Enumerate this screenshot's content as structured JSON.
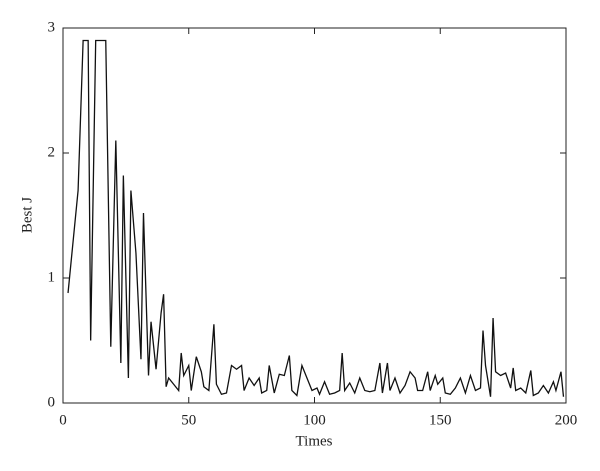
{
  "chart_data": {
    "type": "line",
    "x_label": "Times",
    "y_label": "Best J",
    "x": [
      2,
      6,
      8,
      10,
      11,
      13,
      17,
      19,
      21,
      23,
      24,
      26,
      27,
      29,
      31,
      32,
      34,
      35,
      37,
      39,
      40,
      41,
      42,
      44,
      46,
      47,
      48,
      50,
      51,
      53,
      55,
      56,
      58,
      60,
      61,
      63,
      65,
      67,
      69,
      71,
      72,
      74,
      76,
      78,
      79,
      81,
      82,
      84,
      86,
      88,
      90,
      91,
      93,
      95,
      97,
      99,
      101,
      102,
      104,
      106,
      108,
      110,
      111,
      112,
      114,
      116,
      118,
      120,
      122,
      124,
      126,
      127,
      129,
      130,
      132,
      134,
      136,
      138,
      140,
      141,
      143,
      145,
      146,
      148,
      149,
      151,
      152,
      154,
      156,
      158,
      160,
      162,
      164,
      166,
      167,
      168,
      170,
      171,
      172,
      174,
      176,
      178,
      179,
      180,
      182,
      184,
      186,
      187,
      189,
      191,
      193,
      195,
      196,
      198,
      199
    ],
    "series": [
      {
        "color": "#111111",
        "values": [
          0.88,
          1.7,
          2.9,
          2.9,
          0.5,
          2.9,
          2.9,
          0.45,
          2.1,
          0.32,
          1.82,
          0.2,
          1.7,
          1.2,
          0.35,
          1.52,
          0.22,
          0.65,
          0.27,
          0.72,
          0.87,
          0.13,
          0.2,
          0.15,
          0.1,
          0.4,
          0.22,
          0.3,
          0.1,
          0.37,
          0.25,
          0.13,
          0.1,
          0.63,
          0.15,
          0.07,
          0.08,
          0.3,
          0.27,
          0.3,
          0.1,
          0.2,
          0.14,
          0.2,
          0.08,
          0.1,
          0.3,
          0.08,
          0.23,
          0.22,
          0.38,
          0.1,
          0.06,
          0.3,
          0.2,
          0.1,
          0.12,
          0.07,
          0.17,
          0.07,
          0.08,
          0.1,
          0.4,
          0.1,
          0.16,
          0.08,
          0.2,
          0.1,
          0.09,
          0.1,
          0.32,
          0.08,
          0.32,
          0.1,
          0.2,
          0.08,
          0.14,
          0.25,
          0.2,
          0.1,
          0.1,
          0.25,
          0.1,
          0.22,
          0.15,
          0.2,
          0.08,
          0.07,
          0.12,
          0.2,
          0.08,
          0.22,
          0.1,
          0.12,
          0.58,
          0.3,
          0.05,
          0.68,
          0.25,
          0.22,
          0.24,
          0.12,
          0.28,
          0.1,
          0.12,
          0.08,
          0.26,
          0.06,
          0.08,
          0.14,
          0.08,
          0.17,
          0.1,
          0.25,
          0.05
        ]
      }
    ],
    "xlim": [
      0,
      200
    ],
    "xticks": [
      0,
      50,
      100,
      150,
      200
    ],
    "ylim": [
      0,
      3
    ],
    "yticks": [
      0,
      1,
      2,
      3
    ]
  }
}
